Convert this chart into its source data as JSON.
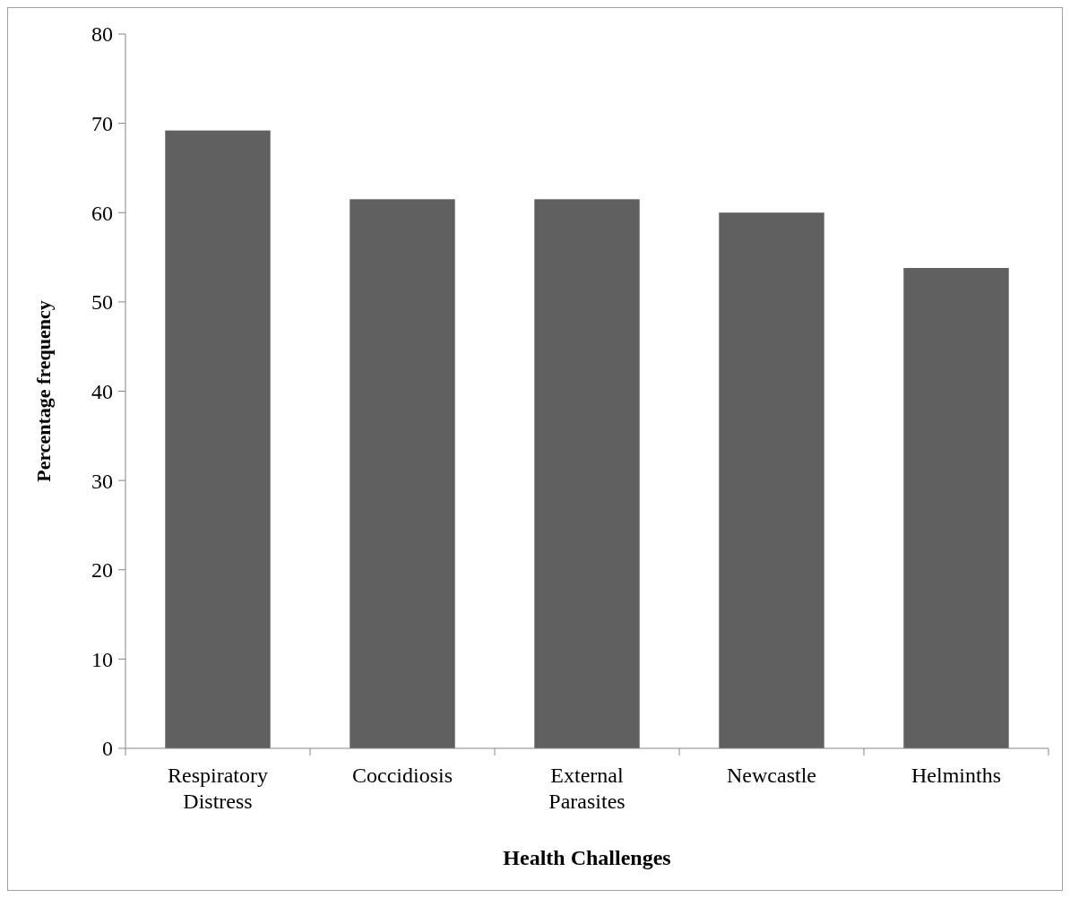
{
  "chart_data": {
    "type": "bar",
    "xlabel": "Health Challenges",
    "ylabel": "Percentage frequency",
    "categories": [
      "Respiratory Distress",
      "Coccidiosis",
      "External Parasites",
      "Newcastle",
      "Helminths"
    ],
    "values": [
      69.2,
      61.5,
      61.5,
      60,
      53.8
    ],
    "color": "#606060",
    "ylim": [
      0,
      80
    ],
    "yticks": [
      0,
      10,
      20,
      30,
      40,
      50,
      60,
      70,
      80
    ],
    "grid": false
  }
}
